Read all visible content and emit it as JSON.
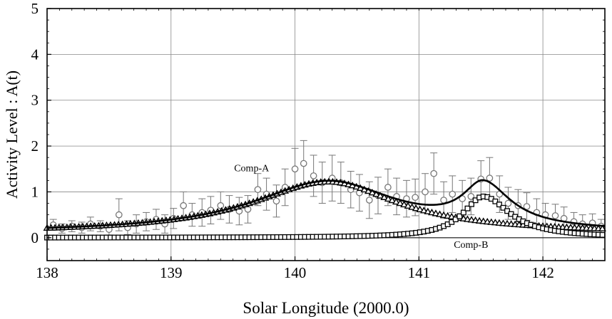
{
  "chart_data": {
    "type": "scatter",
    "title": "",
    "xlabel": "Solar Longitude (2000.0)",
    "ylabel": "Activity Level : A(t)",
    "xlim": [
      138,
      142.5
    ],
    "ylim": [
      -0.5,
      5
    ],
    "xticks": [
      "138",
      "139",
      "140",
      "141",
      "142"
    ],
    "yticks": [
      "0",
      "1",
      "2",
      "3",
      "4",
      "5"
    ],
    "grid": true,
    "annotations": [
      {
        "text": "Comp-A",
        "x": 139.65,
        "y": 1.45
      },
      {
        "text": "Comp-B",
        "x": 141.42,
        "y": -0.22
      }
    ],
    "observed": {
      "marker": "open-circle-with-errorbar",
      "x": [
        138.05,
        138.12,
        138.2,
        138.28,
        138.35,
        138.43,
        138.5,
        138.58,
        138.65,
        138.72,
        138.8,
        138.88,
        138.95,
        139.02,
        139.1,
        139.17,
        139.25,
        139.32,
        139.4,
        139.47,
        139.55,
        139.62,
        139.7,
        139.77,
        139.85,
        139.92,
        140.0,
        140.07,
        140.15,
        140.22,
        140.3,
        140.37,
        140.45,
        140.52,
        140.6,
        140.67,
        140.75,
        140.82,
        140.9,
        140.97,
        141.05,
        141.12,
        141.2,
        141.27,
        141.35,
        141.42,
        141.5,
        141.57,
        141.65,
        141.72,
        141.8,
        141.87,
        141.95,
        142.02,
        142.1,
        142.17,
        142.25,
        142.32,
        142.4,
        142.47
      ],
      "y": [
        0.28,
        0.2,
        0.25,
        0.22,
        0.3,
        0.25,
        0.18,
        0.5,
        0.22,
        0.3,
        0.35,
        0.4,
        0.3,
        0.42,
        0.7,
        0.5,
        0.55,
        0.6,
        0.7,
        0.62,
        0.58,
        0.62,
        1.05,
        0.95,
        0.8,
        1.1,
        1.5,
        1.62,
        1.35,
        1.2,
        1.3,
        1.2,
        1.05,
        0.98,
        0.82,
        0.92,
        1.1,
        0.9,
        0.85,
        0.88,
        1.0,
        1.4,
        0.82,
        0.95,
        0.85,
        0.9,
        1.28,
        1.3,
        0.95,
        0.75,
        0.7,
        0.68,
        0.55,
        0.5,
        0.48,
        0.42,
        0.35,
        0.3,
        0.32,
        0.25
      ],
      "err": [
        0.12,
        0.1,
        0.12,
        0.12,
        0.15,
        0.12,
        0.12,
        0.35,
        0.15,
        0.2,
        0.2,
        0.22,
        0.2,
        0.22,
        0.3,
        0.25,
        0.3,
        0.3,
        0.3,
        0.3,
        0.3,
        0.3,
        0.35,
        0.35,
        0.35,
        0.4,
        0.45,
        0.5,
        0.45,
        0.45,
        0.5,
        0.45,
        0.4,
        0.4,
        0.4,
        0.4,
        0.4,
        0.4,
        0.4,
        0.4,
        0.4,
        0.45,
        0.4,
        0.4,
        0.4,
        0.4,
        0.4,
        0.45,
        0.4,
        0.35,
        0.35,
        0.3,
        0.3,
        0.25,
        0.25,
        0.25,
        0.2,
        0.2,
        0.2,
        0.15
      ]
    },
    "series": [
      {
        "name": "Comp-A",
        "marker": "open-triangle",
        "center": 140.27,
        "peak": 1.22,
        "base": 0.1,
        "sigma_left": 0.75,
        "sigma_right": 0.68,
        "step": 0.032
      },
      {
        "name": "Comp-B",
        "marker": "open-square",
        "center": 141.52,
        "peak": 0.9,
        "base": 0.0,
        "sigma_left": 0.2,
        "sigma_right": 0.26,
        "step": 0.032
      }
    ],
    "total_curve": {
      "style": "thick-solid-line",
      "components": [
        "Comp-A",
        "Comp-B"
      ]
    }
  }
}
